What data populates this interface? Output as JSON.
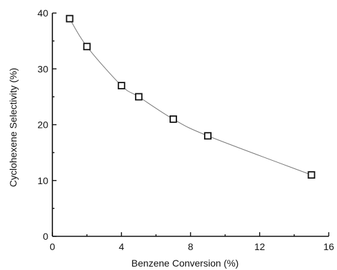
{
  "chart_data": {
    "type": "scatter",
    "xlabel": "Benzene Conversion (%)",
    "ylabel": "Cyclohexene Selectivity (%)",
    "xlim": [
      0,
      16
    ],
    "ylim": [
      0,
      40
    ],
    "xticks": [
      0,
      4,
      8,
      12,
      16
    ],
    "yticks": [
      0,
      10,
      20,
      30,
      40
    ],
    "xtick_labels": [
      "0",
      "4",
      "8",
      "12",
      "16"
    ],
    "ytick_labels": [
      "0",
      "10",
      "20",
      "30",
      "40"
    ],
    "marker": "open-square",
    "trend_line": "smooth curve through points",
    "series": [
      {
        "x": [
          1,
          2,
          4,
          5,
          7,
          9,
          15
        ],
        "y": [
          39,
          34,
          27,
          25,
          21,
          18,
          11
        ]
      }
    ],
    "grid": false,
    "legend": "none"
  }
}
